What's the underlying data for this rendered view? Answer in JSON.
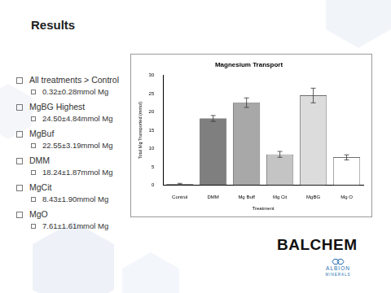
{
  "slide": {
    "title": "Results",
    "bullets": [
      {
        "text": "All treatments > Control",
        "sub": "0.32±0.28mmol Mg"
      },
      {
        "text": "MgBG Highest",
        "sub": "24.50±4.84mmol Mg"
      },
      {
        "text": "MgBuf",
        "sub": "22.55±3.19mmol Mg"
      },
      {
        "text": "DMM",
        "sub": "18.24±1.87mmol Mg"
      },
      {
        "text": "MgCit",
        "sub": "8.43±1.90mmol Mg"
      },
      {
        "text": "MgO",
        "sub": "7.61±1.61mmol Mg"
      }
    ],
    "logos": [
      "BALCHEM",
      "ALBION",
      "MINERALS"
    ]
  },
  "chart_data": {
    "type": "bar",
    "title": "Magnesium Transport",
    "x_label": "Treatment",
    "y_label": "Total Mg Transported (mmol)",
    "categories": [
      "Control",
      "DMM",
      "Mg Buff",
      "Mg Cit",
      "MgBG",
      "Mg O"
    ],
    "values": [
      0.32,
      18.24,
      22.55,
      8.43,
      24.5,
      7.61
    ],
    "errors": [
      0.2,
      0.8,
      1.3,
      0.8,
      2.0,
      0.7
    ],
    "colors": [
      "#4d4d4d",
      "#7f7f7f",
      "#a8a8a8",
      "#c4c4c4",
      "#dcdcdc",
      "#ffffff"
    ],
    "ylim": [
      0,
      30
    ],
    "yticks": [
      0,
      5,
      10,
      15,
      20,
      25,
      30
    ],
    "grid": false
  }
}
